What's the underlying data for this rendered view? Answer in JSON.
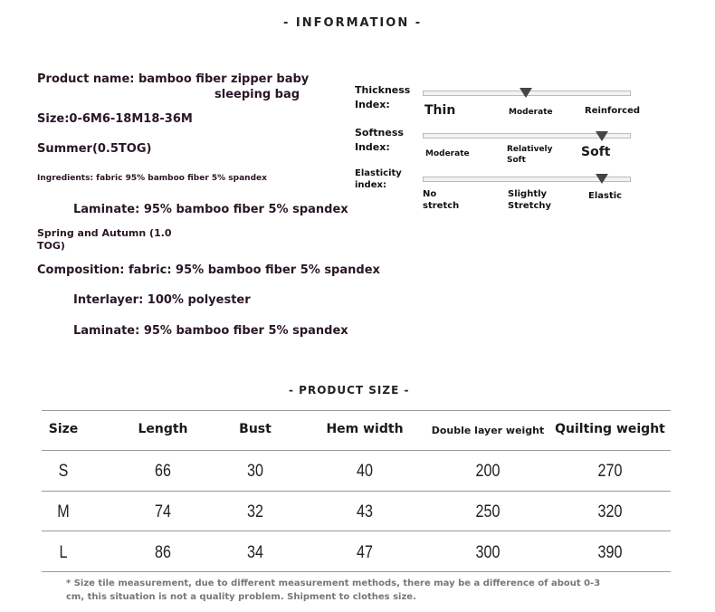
{
  "info_heading": "- INFORMATION -",
  "info_lines": {
    "product_name_1": "Product name: bamboo fiber zipper baby",
    "product_name_2": "sleeping bag",
    "size": "Size:0-6M6-18M18-36M",
    "summer": "Summer(0.5TOG)",
    "ingredients": "Ingredients: fabric 95% bamboo fiber 5% spandex",
    "laminate_1": "Laminate: 95% bamboo fiber 5% spandex",
    "spring_1": "Spring and Autumn (1.0",
    "spring_2": "TOG)",
    "composition": "Composition: fabric: 95% bamboo fiber 5% spandex",
    "interlayer": "Interlayer: 100% polyester",
    "laminate_2": "Laminate: 95% bamboo fiber 5% spandex"
  },
  "indices": [
    {
      "label_1": "Thickness",
      "label_2": "Index:",
      "ticks": [
        "Thin",
        "Moderate",
        "Reinforced"
      ],
      "level": 0.5
    },
    {
      "label_1": "Softness",
      "label_2": "Index:",
      "ticks": [
        "Moderate",
        "Relatively Soft",
        "Soft"
      ],
      "level": 0.87
    },
    {
      "label_1": "Elasticity",
      "label_2": "index:",
      "ticks": [
        "No stretch",
        "Slightly Stretchy",
        "Elastic"
      ],
      "level": 0.87
    }
  ],
  "size_heading": "- PRODUCT SIZE -",
  "table": {
    "headers": [
      "Size",
      "Length",
      "Bust",
      "Hem width",
      "Double layer weight",
      "Quilting weight"
    ],
    "rows": [
      [
        "S",
        "66",
        "30",
        "40",
        "200",
        "270"
      ],
      [
        "M",
        "74",
        "32",
        "43",
        "250",
        "320"
      ],
      [
        "L",
        "86",
        "34",
        "47",
        "300",
        "390"
      ]
    ]
  },
  "note_1": "* Size tile measurement, due to different measurement methods, there may be a difference of about 0-3",
  "note_2": "cm, this situation is not a quality problem. Shipment to clothes size."
}
